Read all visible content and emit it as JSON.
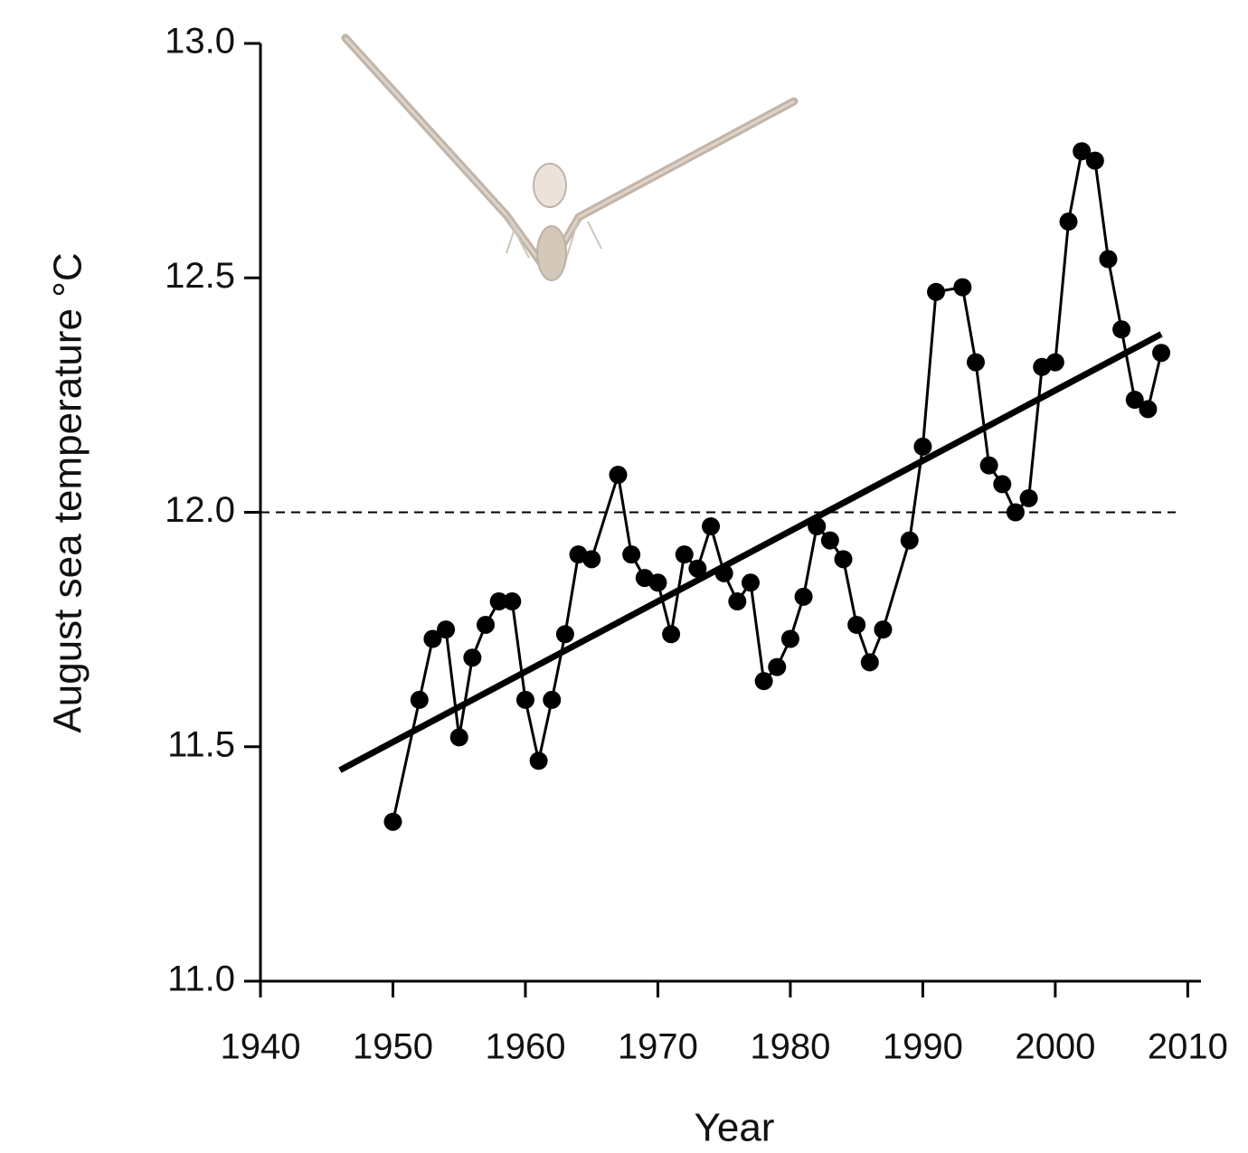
{
  "chart_data": {
    "type": "line",
    "x_label": "Year",
    "y_label": "August sea temperature °C",
    "xlim": [
      1940,
      2011
    ],
    "ylim": [
      11.0,
      13.0
    ],
    "xticks": [
      1940,
      1950,
      1960,
      1970,
      1980,
      1990,
      2000,
      2010
    ],
    "yticks": [
      {
        "value": 11.0,
        "label": "11.0"
      },
      {
        "value": 11.5,
        "label": "11.5"
      },
      {
        "value": 12.0,
        "label": "12.0"
      },
      {
        "value": 12.5,
        "label": "12.5"
      },
      {
        "value": 13.0,
        "label": "13.0"
      }
    ],
    "grid": false,
    "x": [
      1950,
      1952,
      1953,
      1954,
      1955,
      1956,
      1957,
      1958,
      1959,
      1960,
      1961,
      1962,
      1963,
      1964,
      1965,
      1967,
      1968,
      1969,
      1970,
      1971,
      1972,
      1973,
      1974,
      1975,
      1976,
      1977,
      1978,
      1979,
      1980,
      1981,
      1982,
      1983,
      1984,
      1985,
      1986,
      1987,
      1989,
      1990,
      1991,
      1993,
      1994,
      1995,
      1996,
      1997,
      1998,
      1999,
      2000,
      2001,
      2002,
      2003,
      2004,
      2005,
      2006,
      2007,
      2008
    ],
    "series": [
      {
        "color": "#000000",
        "values": [
          11.34,
          11.6,
          11.73,
          11.75,
          11.52,
          11.69,
          11.76,
          11.81,
          11.81,
          11.6,
          11.47,
          11.6,
          11.74,
          11.91,
          11.9,
          12.08,
          11.91,
          11.86,
          11.85,
          11.74,
          11.91,
          11.88,
          11.97,
          11.87,
          11.81,
          11.85,
          11.64,
          11.67,
          11.73,
          11.82,
          11.97,
          11.94,
          11.9,
          11.76,
          11.68,
          11.75,
          11.94,
          12.14,
          12.47,
          12.48,
          12.32,
          12.1,
          12.06,
          12.0,
          12.03,
          12.31,
          12.32,
          12.62,
          12.77,
          12.75,
          12.54,
          12.39,
          12.24,
          12.22,
          12.34
        ]
      }
    ],
    "trend_line": {
      "color": "#000000",
      "x": [
        1946,
        2008
      ],
      "values": [
        11.45,
        12.38
      ]
    },
    "reference_line": {
      "value": 12.0,
      "color": "#000000",
      "dashed": true
    }
  }
}
